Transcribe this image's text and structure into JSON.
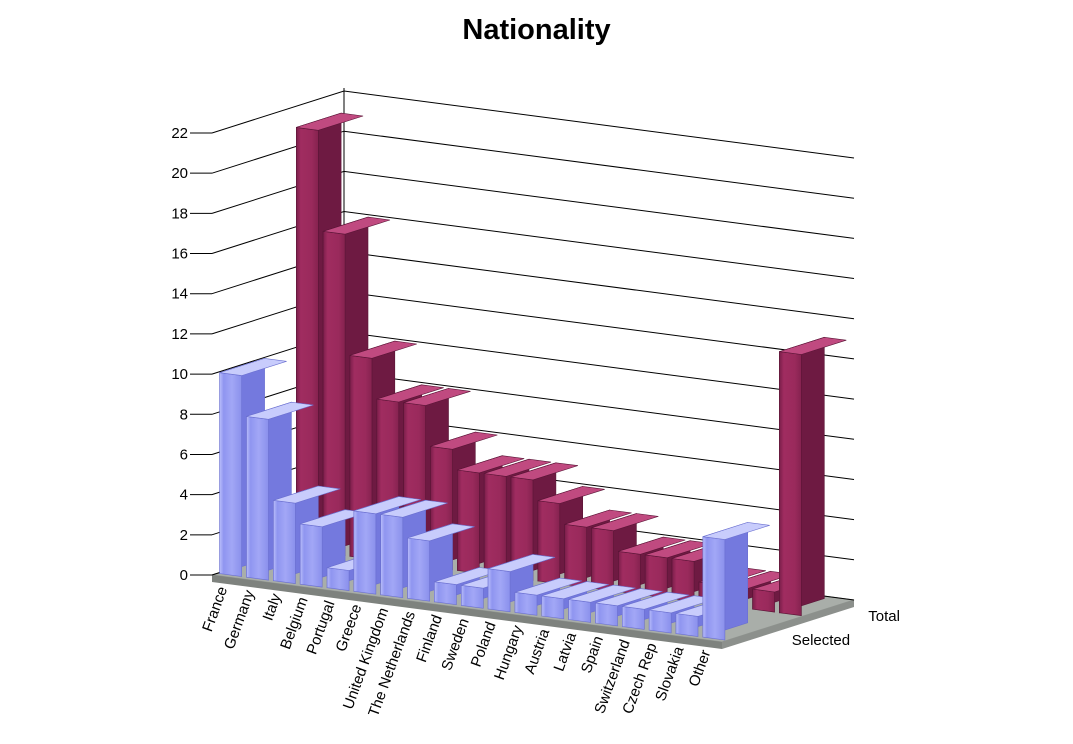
{
  "chart_data": {
    "type": "bar",
    "title": "Nationality",
    "xlabel": "",
    "ylabel": "",
    "ylim": [
      0,
      22
    ],
    "yticks": [
      0,
      2,
      4,
      6,
      8,
      10,
      12,
      14,
      16,
      18,
      20,
      22
    ],
    "grid": true,
    "categories": [
      "France",
      "Germany",
      "Italy",
      "Belgium",
      "Portugal",
      "Greece",
      "United Kingdom",
      "The Netherlands",
      "Finland",
      "Sweden",
      "Poland",
      "Hungary",
      "Austria",
      "Latvia",
      "Spain",
      "Switzerland",
      "Czech Rep",
      "Slovakia",
      "Other"
    ],
    "series": [
      {
        "name": "Selected",
        "color": "#9aa0f4",
        "values": [
          10,
          8,
          4,
          3,
          1,
          4,
          4,
          3,
          1,
          1,
          2,
          1,
          1,
          1,
          1,
          1,
          1,
          1,
          5
        ]
      },
      {
        "name": "Total",
        "color": "#9c2a5e",
        "values": [
          21,
          16,
          10,
          8,
          8,
          6,
          5,
          5,
          5,
          4,
          3,
          3,
          2,
          2,
          2,
          1,
          1,
          1,
          13
        ]
      }
    ]
  }
}
